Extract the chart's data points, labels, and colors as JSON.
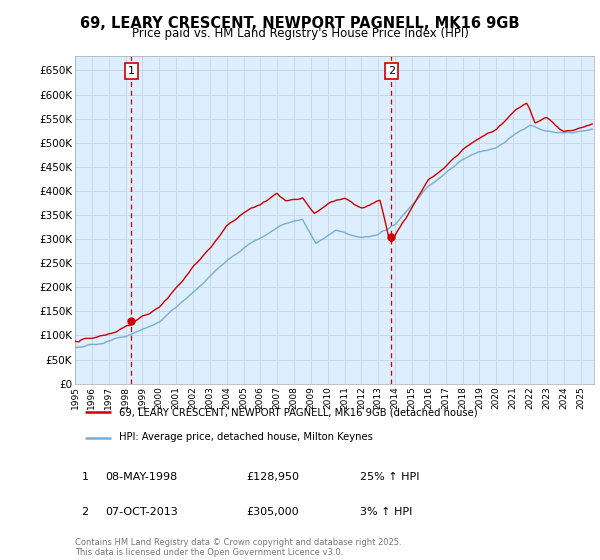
{
  "title": "69, LEARY CRESCENT, NEWPORT PAGNELL, MK16 9GB",
  "subtitle": "Price paid vs. HM Land Registry's House Price Index (HPI)",
  "legend_line1": "69, LEARY CRESCENT, NEWPORT PAGNELL, MK16 9GB (detached house)",
  "legend_line2": "HPI: Average price, detached house, Milton Keynes",
  "transaction1_date": "08-MAY-1998",
  "transaction1_price": "£128,950",
  "transaction1_hpi": "25% ↑ HPI",
  "transaction2_date": "07-OCT-2013",
  "transaction2_price": "£305,000",
  "transaction2_hpi": "3% ↑ HPI",
  "footer": "Contains HM Land Registry data © Crown copyright and database right 2025.\nThis data is licensed under the Open Government Licence v3.0.",
  "ylim": [
    0,
    680000
  ],
  "yticks": [
    0,
    50000,
    100000,
    150000,
    200000,
    250000,
    300000,
    350000,
    400000,
    450000,
    500000,
    550000,
    600000,
    650000
  ],
  "ytick_labels": [
    "£0",
    "£50K",
    "£100K",
    "£150K",
    "£200K",
    "£250K",
    "£300K",
    "£350K",
    "£400K",
    "£450K",
    "£500K",
    "£550K",
    "£600K",
    "£650K"
  ],
  "color_red": "#cc0000",
  "color_blue": "#7aadd4",
  "color_gridline": "#c8d8e8",
  "color_vline": "#cc0000",
  "background_color": "#ffffff",
  "plot_bg_color": "#ddeeff",
  "marker1_year": 1998.35,
  "marker2_year": 2013.77,
  "marker1_value": 128950,
  "marker2_value": 305000,
  "xlim_left": 1995.0,
  "xlim_right": 2025.8
}
